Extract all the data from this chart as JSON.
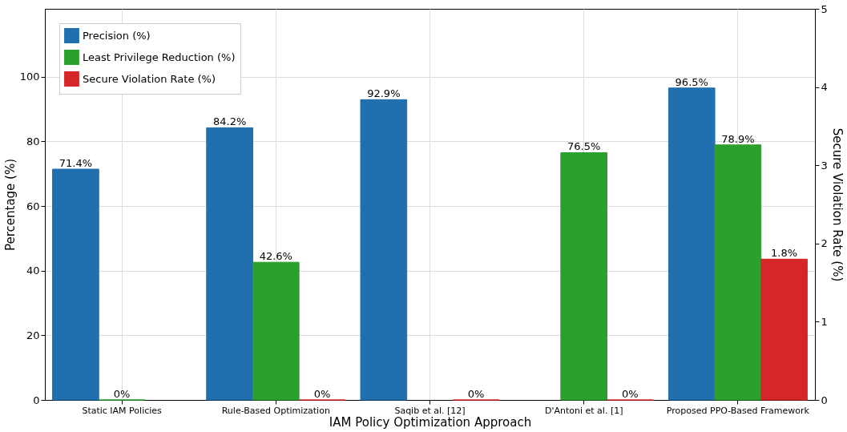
{
  "chart_data": {
    "type": "bar",
    "xlabel": "IAM Policy Optimization Approach",
    "ylabel": "Percentage (%)",
    "y2label": "Secure Violation Rate (%)",
    "categories": [
      "Static IAM Policies",
      "Rule-Based Optimization",
      "Saqib et al. [12]",
      "D'Antoni et al. [1]",
      "Proposed PPO-Based Framework"
    ],
    "series": [
      {
        "name": "Precision (%)",
        "color": "#2070b0",
        "values": [
          71.4,
          84.2,
          92.9,
          null,
          96.5
        ],
        "value_labels": [
          "71.4%",
          "84.2%",
          "92.9%",
          null,
          "96.5%"
        ]
      },
      {
        "name": "Least Privilege Reduction (%)",
        "color": "#2ca02c",
        "values": [
          0,
          42.6,
          null,
          76.5,
          78.9
        ],
        "value_labels": [
          "0%",
          "42.6%",
          null,
          "76.5%",
          "78.9%"
        ]
      },
      {
        "name": "Secure Violation Rate (%)",
        "color": "#d62728",
        "axis": "y2",
        "values": [
          null,
          0,
          0,
          0,
          1.8
        ],
        "value_labels": [
          null,
          "0%",
          "0%",
          "0%",
          "1.8%"
        ]
      }
    ],
    "ylim": [
      0,
      121
    ],
    "yticks": [
      0,
      20,
      40,
      60,
      80,
      100
    ],
    "y2lim": [
      0,
      5
    ],
    "y2ticks": [
      0,
      1,
      2,
      3,
      4,
      5
    ],
    "grid": true,
    "legend": "top left"
  }
}
